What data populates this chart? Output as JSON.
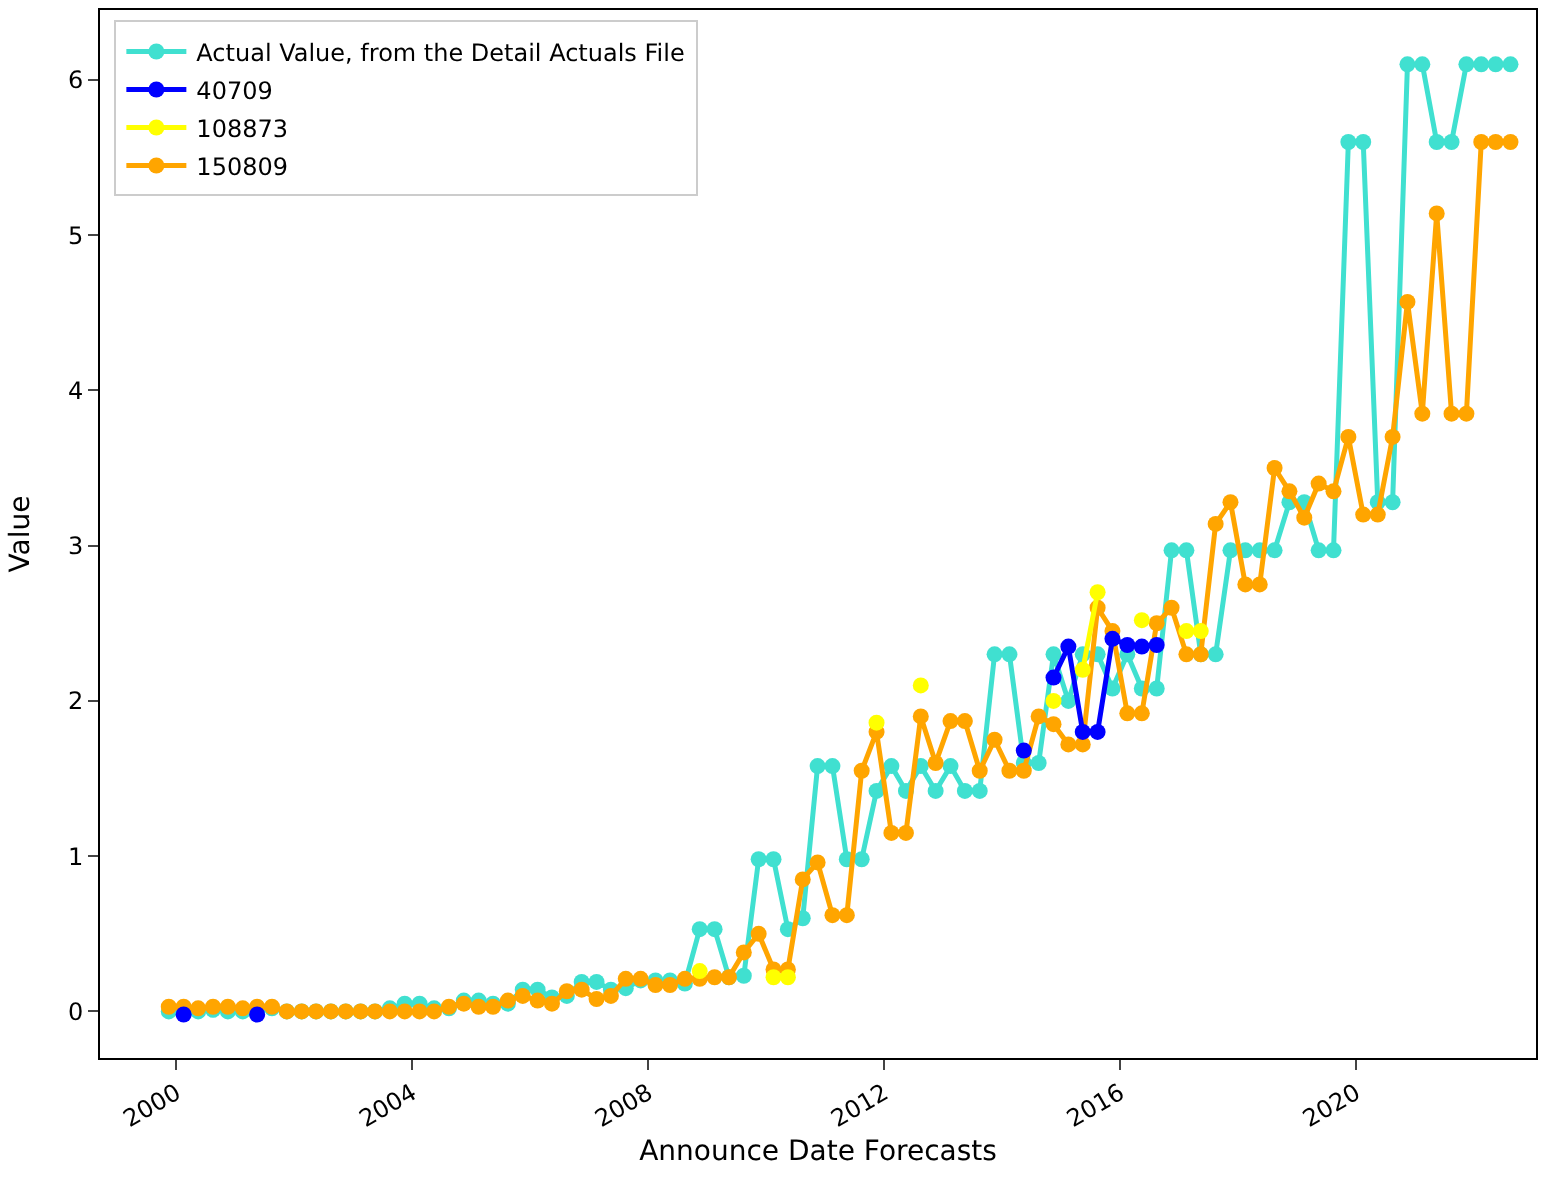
{
  "chart_data": {
    "type": "line",
    "xlabel": "Announce Date Forecasts",
    "ylabel": "Value",
    "marker": "circle",
    "line_style": "solid",
    "legend": "top left",
    "xlim": [
      "1998-09-15",
      "2023-01-20"
    ],
    "ylim": [
      -0.3,
      6.45
    ],
    "xticks": [
      {
        "value": "2000-01-01",
        "label": "2000"
      },
      {
        "value": "2004-01-01",
        "label": "2004"
      },
      {
        "value": "2008-01-01",
        "label": "2008"
      },
      {
        "value": "2012-01-01",
        "label": "2012"
      },
      {
        "value": "2016-01-01",
        "label": "2016"
      },
      {
        "value": "2020-01-01",
        "label": "2020"
      }
    ],
    "yticks": [
      0,
      1,
      2,
      3,
      4,
      5,
      6
    ],
    "x": [
      "1999-11",
      "2000-02",
      "2000-05",
      "2000-08",
      "2000-11",
      "2001-02",
      "2001-05",
      "2001-08",
      "2001-11",
      "2002-02",
      "2002-05",
      "2002-08",
      "2002-11",
      "2003-02",
      "2003-05",
      "2003-08",
      "2003-11",
      "2004-02",
      "2004-05",
      "2004-08",
      "2004-11",
      "2005-02",
      "2005-05",
      "2005-08",
      "2005-11",
      "2006-02",
      "2006-05",
      "2006-08",
      "2006-11",
      "2007-02",
      "2007-05",
      "2007-08",
      "2007-11",
      "2008-02",
      "2008-05",
      "2008-08",
      "2008-11",
      "2009-02",
      "2009-05",
      "2009-08",
      "2009-11",
      "2010-02",
      "2010-05",
      "2010-08",
      "2010-11",
      "2011-02",
      "2011-05",
      "2011-08",
      "2011-11",
      "2012-02",
      "2012-05",
      "2012-08",
      "2012-11",
      "2013-02",
      "2013-05",
      "2013-08",
      "2013-11",
      "2014-02",
      "2014-05",
      "2014-08",
      "2014-11",
      "2015-02",
      "2015-05",
      "2015-08",
      "2015-11",
      "2016-02",
      "2016-05",
      "2016-08",
      "2016-11",
      "2017-02",
      "2017-05",
      "2017-08",
      "2017-11",
      "2018-02",
      "2018-05",
      "2018-08",
      "2018-11",
      "2019-02",
      "2019-05",
      "2019-08",
      "2019-11",
      "2020-02",
      "2020-05",
      "2020-08",
      "2020-11",
      "2021-02",
      "2021-05",
      "2021-08",
      "2021-11",
      "2022-02",
      "2022-05",
      "2022-08"
    ],
    "series": [
      {
        "name": "Actual Value, from the Detail Actuals File",
        "color": "#40e0d0",
        "values": [
          0.0,
          0.0,
          0.0,
          0.01,
          0.0,
          0.0,
          0.0,
          0.02,
          0.0,
          0.0,
          0.0,
          0.0,
          0.0,
          0.0,
          0.0,
          0.02,
          0.05,
          0.05,
          0.02,
          0.02,
          0.07,
          0.07,
          0.05,
          0.05,
          0.14,
          0.14,
          0.09,
          0.1,
          0.19,
          0.19,
          0.14,
          0.15,
          0.2,
          0.2,
          0.2,
          0.18,
          0.53,
          0.53,
          0.22,
          0.23,
          0.98,
          0.98,
          0.53,
          0.6,
          1.58,
          1.58,
          0.98,
          0.98,
          1.42,
          1.58,
          1.42,
          1.58,
          1.42,
          1.58,
          1.42,
          1.42,
          2.3,
          2.3,
          1.6,
          1.6,
          2.3,
          2.0,
          2.3,
          2.3,
          2.08,
          2.3,
          2.08,
          2.08,
          2.97,
          2.97,
          2.3,
          2.3,
          2.97,
          2.97,
          2.97,
          2.97,
          3.28,
          3.28,
          2.97,
          2.97,
          5.6,
          5.6,
          3.28,
          3.28,
          6.1,
          6.1,
          5.6,
          5.6,
          6.1,
          6.1,
          6.1,
          6.1
        ]
      },
      {
        "name": "40709",
        "color": "#0000ff",
        "values": [
          null,
          -0.02,
          null,
          null,
          null,
          null,
          -0.02,
          null,
          null,
          null,
          null,
          null,
          null,
          null,
          null,
          null,
          null,
          null,
          null,
          null,
          null,
          null,
          null,
          null,
          null,
          null,
          null,
          null,
          null,
          null,
          null,
          null,
          null,
          null,
          null,
          null,
          null,
          null,
          null,
          null,
          null,
          null,
          null,
          null,
          null,
          null,
          null,
          null,
          null,
          null,
          null,
          null,
          null,
          null,
          null,
          null,
          null,
          null,
          1.68,
          null,
          2.15,
          2.35,
          1.8,
          1.8,
          2.4,
          2.36,
          2.35,
          2.36,
          null,
          null,
          null,
          null,
          null,
          null,
          null,
          null,
          null,
          null,
          null,
          null,
          null,
          null,
          null,
          null,
          null,
          null,
          null,
          null,
          null,
          null,
          null,
          null
        ]
      },
      {
        "name": "108873",
        "color": "#ffff00",
        "values": [
          null,
          null,
          null,
          null,
          null,
          null,
          null,
          null,
          null,
          null,
          null,
          null,
          null,
          null,
          null,
          null,
          null,
          null,
          null,
          null,
          null,
          null,
          null,
          null,
          null,
          null,
          null,
          null,
          null,
          null,
          null,
          null,
          null,
          null,
          null,
          null,
          0.26,
          null,
          null,
          null,
          null,
          0.22,
          0.22,
          null,
          null,
          null,
          null,
          null,
          1.86,
          null,
          null,
          2.1,
          null,
          null,
          null,
          null,
          null,
          null,
          null,
          null,
          2.0,
          null,
          2.2,
          2.7,
          null,
          null,
          2.52,
          null,
          null,
          2.45,
          2.45,
          null,
          null,
          null,
          null,
          null,
          null,
          null,
          null,
          null,
          null,
          null,
          null,
          null,
          null,
          null,
          null,
          null,
          null,
          null,
          null,
          null
        ]
      },
      {
        "name": "150809",
        "color": "#ffa500",
        "values": [
          0.03,
          0.03,
          0.02,
          0.03,
          0.03,
          0.02,
          0.03,
          0.03,
          0.0,
          0.0,
          0.0,
          0.0,
          0.0,
          0.0,
          0.0,
          0.0,
          0.0,
          0.0,
          0.0,
          0.03,
          0.05,
          0.03,
          0.03,
          0.07,
          0.1,
          0.07,
          0.05,
          0.13,
          0.14,
          0.08,
          0.1,
          0.21,
          0.21,
          0.17,
          0.17,
          0.21,
          0.21,
          0.22,
          0.22,
          0.38,
          0.5,
          0.27,
          0.27,
          0.85,
          0.96,
          0.62,
          0.62,
          1.55,
          1.8,
          1.15,
          1.15,
          1.9,
          1.6,
          1.87,
          1.87,
          1.55,
          1.75,
          1.55,
          1.55,
          1.9,
          1.85,
          1.72,
          1.72,
          2.6,
          2.45,
          1.92,
          1.92,
          2.5,
          2.6,
          2.3,
          2.3,
          3.14,
          3.28,
          2.75,
          2.75,
          3.5,
          3.35,
          3.18,
          3.4,
          3.35,
          3.7,
          3.2,
          3.2,
          3.7,
          4.57,
          3.85,
          5.14,
          3.85,
          3.85,
          5.6,
          5.6,
          5.6
        ]
      }
    ]
  }
}
